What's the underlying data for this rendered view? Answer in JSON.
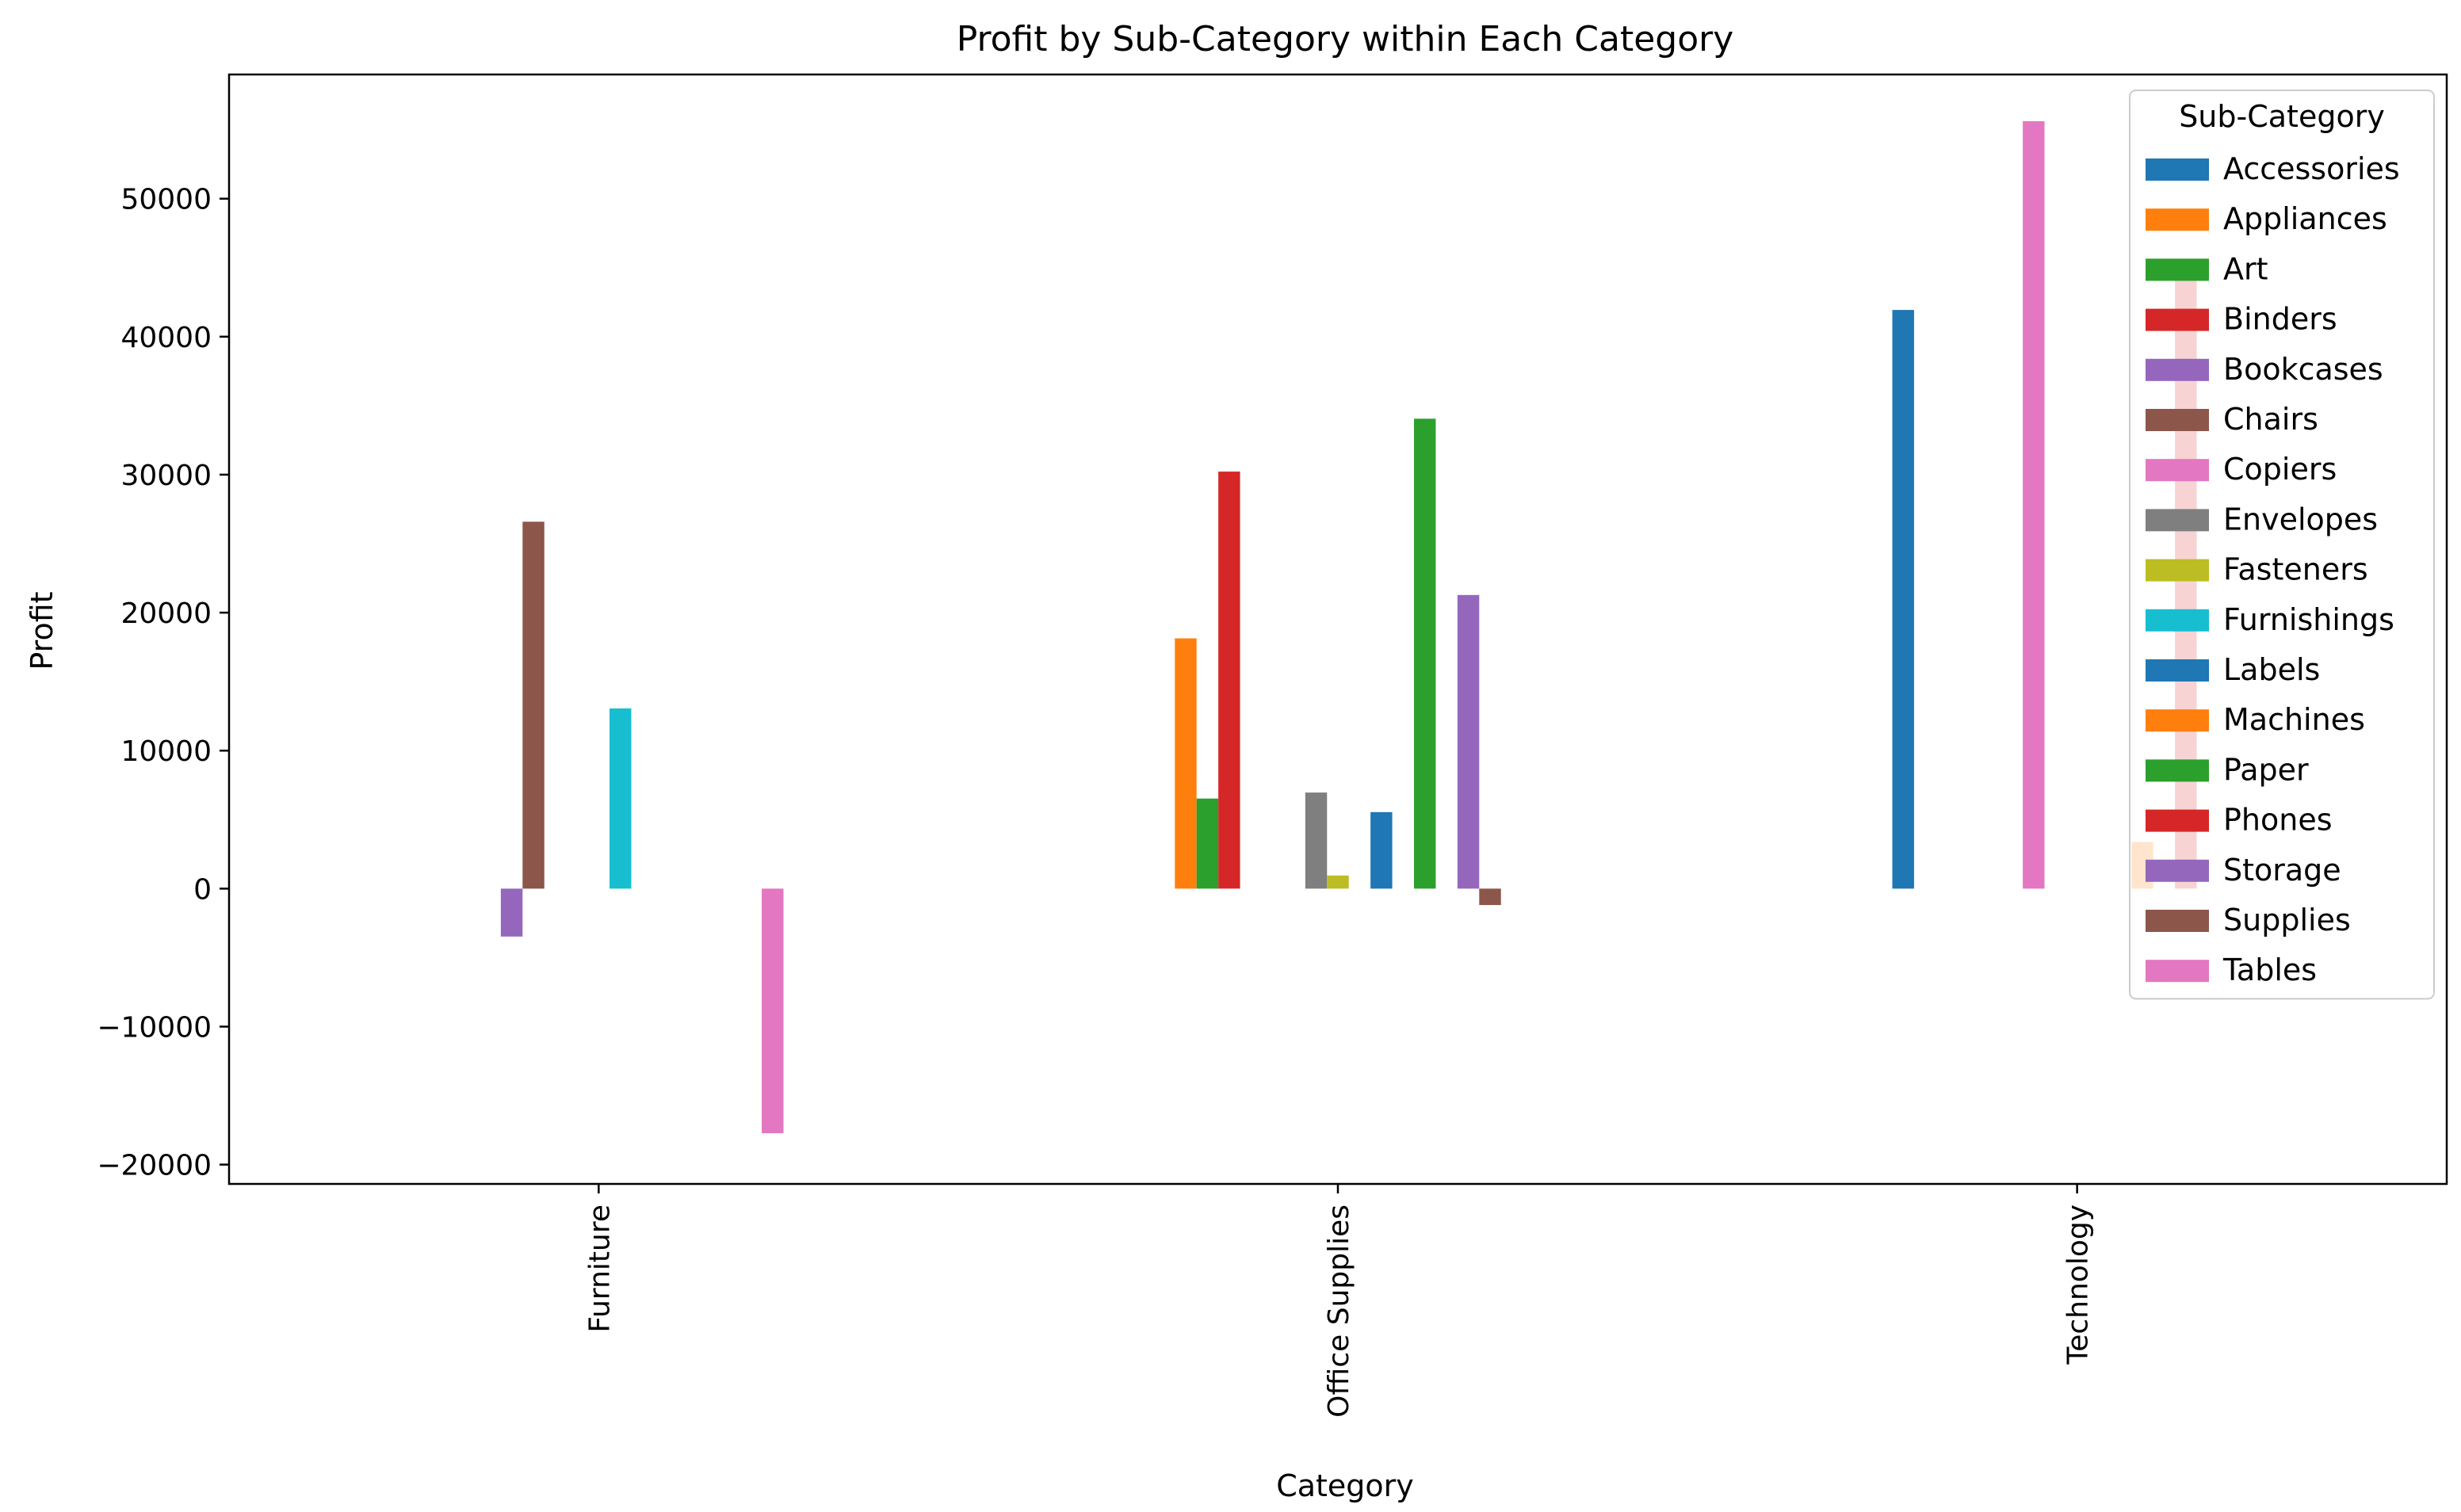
{
  "chart_data": {
    "type": "bar",
    "title": "Profit by Sub-Category within Each Category",
    "xlabel": "Category",
    "ylabel": "Profit",
    "ylim": [
      -21400,
      59000
    ],
    "yticks": [
      -20000,
      -10000,
      0,
      10000,
      20000,
      30000,
      40000,
      50000
    ],
    "categories": [
      "Furniture",
      "Office Supplies",
      "Technology"
    ],
    "legend_title": "Sub-Category",
    "legend_position": "top-right",
    "grid": false,
    "series": [
      {
        "name": "Accessories",
        "color": "#1f77b4",
        "values": [
          null,
          null,
          41937
        ]
      },
      {
        "name": "Appliances",
        "color": "#ff7f0e",
        "values": [
          null,
          18138,
          null
        ]
      },
      {
        "name": "Art",
        "color": "#2ca02c",
        "values": [
          null,
          6528,
          null
        ]
      },
      {
        "name": "Binders",
        "color": "#d62728",
        "values": [
          null,
          30222,
          null
        ]
      },
      {
        "name": "Bookcases",
        "color": "#9467bd",
        "values": [
          -3473,
          null,
          null
        ]
      },
      {
        "name": "Chairs",
        "color": "#8c564b",
        "values": [
          26590,
          null,
          null
        ]
      },
      {
        "name": "Copiers",
        "color": "#e377c2",
        "values": [
          null,
          null,
          55618
        ]
      },
      {
        "name": "Envelopes",
        "color": "#7f7f7f",
        "values": [
          null,
          6964,
          null
        ]
      },
      {
        "name": "Fasteners",
        "color": "#bcbd22",
        "values": [
          null,
          950,
          null
        ]
      },
      {
        "name": "Furnishings",
        "color": "#17becf",
        "values": [
          13059,
          null,
          null
        ]
      },
      {
        "name": "Labels",
        "color": "#1f77b4",
        "values": [
          null,
          5546,
          null
        ]
      },
      {
        "name": "Machines",
        "color": "#ff7f0e",
        "values": [
          null,
          null,
          3385
        ]
      },
      {
        "name": "Paper",
        "color": "#2ca02c",
        "values": [
          null,
          34054,
          null
        ]
      },
      {
        "name": "Phones",
        "color": "#d62728",
        "values": [
          null,
          null,
          44516
        ]
      },
      {
        "name": "Storage",
        "color": "#9467bd",
        "values": [
          null,
          21279,
          null
        ]
      },
      {
        "name": "Supplies",
        "color": "#8c564b",
        "values": [
          null,
          -1189,
          null
        ]
      },
      {
        "name": "Tables",
        "color": "#e377c2",
        "values": [
          -17725,
          null,
          null
        ]
      }
    ]
  }
}
